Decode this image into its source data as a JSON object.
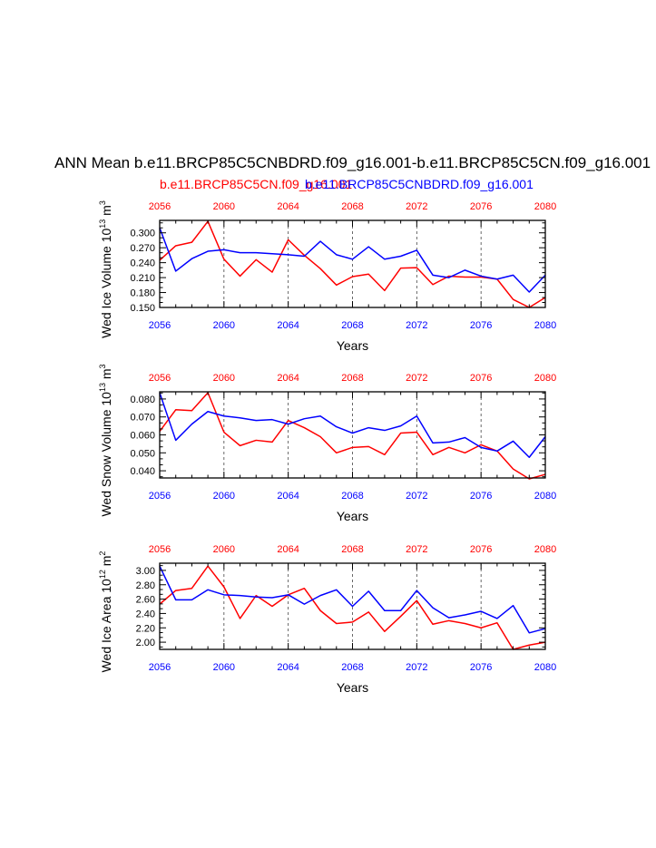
{
  "title": "ANN Mean b.e11.BRCP85C5CNBDRD.f09_g16.001-b.e11.BRCP85C5CN.f09_g16.001",
  "subtitle_red": "b.e11.BRCP85C5CN.f09_g16.001",
  "subtitle_blue": "b.e11.BRCP85C5CNBDRD.f09_g16.001",
  "colors": {
    "red": "#ff0000",
    "blue": "#0000ff"
  },
  "chart_data": [
    {
      "type": "line",
      "ylabel": "Wed Ice Volume 10",
      "ylabel_exp": "13",
      "ylabel_unit": "m",
      "ylabel_unit_exp": "3",
      "xlabel": "Years",
      "xlim": [
        2056,
        2080
      ],
      "ylim": [
        0.15,
        0.325
      ],
      "xticks": [
        "2056",
        "2060",
        "2064",
        "2068",
        "2072",
        "2076",
        "2080"
      ],
      "yticks": [
        "0.150",
        "0.180",
        "0.210",
        "0.240",
        "0.270",
        "0.300"
      ],
      "grid": "vertical dashed",
      "x": [
        2056,
        2057,
        2058,
        2059,
        2060,
        2061,
        2062,
        2063,
        2064,
        2065,
        2066,
        2067,
        2068,
        2069,
        2070,
        2071,
        2072,
        2073,
        2074,
        2075,
        2076,
        2077,
        2078,
        2079,
        2080
      ],
      "series": [
        {
          "color": "red",
          "values": [
            0.245,
            0.274,
            0.281,
            0.323,
            0.247,
            0.213,
            0.246,
            0.221,
            0.286,
            0.255,
            0.228,
            0.195,
            0.212,
            0.217,
            0.184,
            0.229,
            0.23,
            0.196,
            0.213,
            0.211,
            0.211,
            0.207,
            0.166,
            0.15,
            0.17
          ]
        },
        {
          "color": "blue",
          "values": [
            0.31,
            0.223,
            0.248,
            0.263,
            0.266,
            0.26,
            0.26,
            0.258,
            0.256,
            0.253,
            0.283,
            0.256,
            0.247,
            0.272,
            0.247,
            0.253,
            0.265,
            0.215,
            0.21,
            0.225,
            0.213,
            0.207,
            0.215,
            0.181,
            0.215
          ]
        }
      ]
    },
    {
      "type": "line",
      "ylabel": "Wed Snow Volume 10",
      "ylabel_exp": "13",
      "ylabel_unit": "m",
      "ylabel_unit_exp": "3",
      "xlabel": "Years",
      "xlim": [
        2056,
        2080
      ],
      "ylim": [
        0.036,
        0.084
      ],
      "xticks": [
        "2056",
        "2060",
        "2064",
        "2068",
        "2072",
        "2076",
        "2080"
      ],
      "yticks": [
        "0.040",
        "0.050",
        "0.060",
        "0.070",
        "0.080"
      ],
      "grid": "vertical dashed",
      "x": [
        2056,
        2057,
        2058,
        2059,
        2060,
        2061,
        2062,
        2063,
        2064,
        2065,
        2066,
        2067,
        2068,
        2069,
        2070,
        2071,
        2072,
        2073,
        2074,
        2075,
        2076,
        2077,
        2078,
        2079,
        2080
      ],
      "series": [
        {
          "color": "red",
          "values": [
            0.062,
            0.074,
            0.0735,
            0.0835,
            0.0615,
            0.054,
            0.057,
            0.056,
            0.068,
            0.064,
            0.059,
            0.05,
            0.053,
            0.0535,
            0.049,
            0.061,
            0.0615,
            0.049,
            0.053,
            0.05,
            0.0545,
            0.051,
            0.041,
            0.0355,
            0.038
          ]
        },
        {
          "color": "blue",
          "values": [
            0.0835,
            0.057,
            0.066,
            0.073,
            0.0705,
            0.0695,
            0.068,
            0.0685,
            0.066,
            0.069,
            0.0705,
            0.0645,
            0.061,
            0.064,
            0.0625,
            0.065,
            0.0705,
            0.0555,
            0.056,
            0.0585,
            0.053,
            0.051,
            0.0565,
            0.0475,
            0.059
          ]
        }
      ]
    },
    {
      "type": "line",
      "ylabel": "Wed Ice Area 10",
      "ylabel_exp": "12",
      "ylabel_unit": "m",
      "ylabel_unit_exp": "2",
      "xlabel": "Years",
      "xlim": [
        2056,
        2080
      ],
      "ylim": [
        1.9,
        3.1
      ],
      "xticks": [
        "2056",
        "2060",
        "2064",
        "2068",
        "2072",
        "2076",
        "2080"
      ],
      "yticks": [
        "2.00",
        "2.20",
        "2.40",
        "2.60",
        "2.80",
        "3.00"
      ],
      "grid": "vertical dashed",
      "x": [
        2056,
        2057,
        2058,
        2059,
        2060,
        2061,
        2062,
        2063,
        2064,
        2065,
        2066,
        2067,
        2068,
        2069,
        2070,
        2071,
        2072,
        2073,
        2074,
        2075,
        2076,
        2077,
        2078,
        2079,
        2080
      ],
      "series": [
        {
          "color": "red",
          "values": [
            2.53,
            2.72,
            2.75,
            3.06,
            2.77,
            2.33,
            2.65,
            2.5,
            2.66,
            2.75,
            2.44,
            2.26,
            2.28,
            2.42,
            2.15,
            2.36,
            2.58,
            2.25,
            2.3,
            2.26,
            2.2,
            2.27,
            1.9,
            1.96,
            2.0
          ]
        },
        {
          "color": "blue",
          "values": [
            3.06,
            2.59,
            2.59,
            2.73,
            2.66,
            2.65,
            2.63,
            2.62,
            2.66,
            2.53,
            2.65,
            2.73,
            2.5,
            2.71,
            2.44,
            2.44,
            2.72,
            2.48,
            2.34,
            2.38,
            2.43,
            2.33,
            2.51,
            2.13,
            2.19
          ]
        }
      ]
    }
  ]
}
